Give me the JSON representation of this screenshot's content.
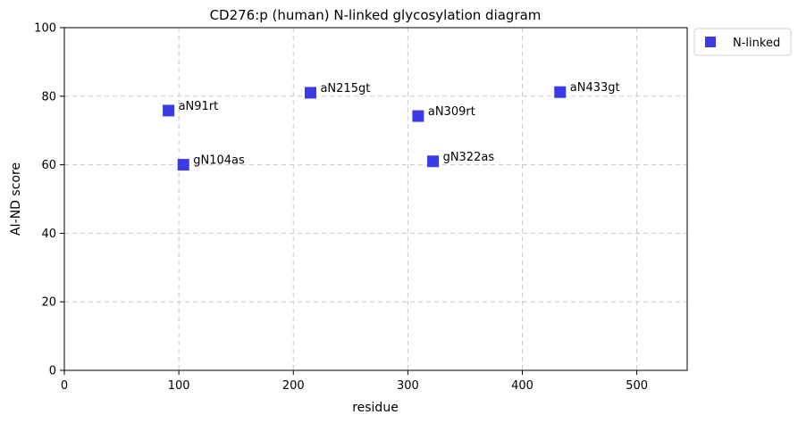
{
  "chart_data": {
    "type": "scatter",
    "title": "CD276:p (human) N-linked glycosylation diagram",
    "xlabel": "residue",
    "ylabel": "AI-ND score",
    "xlim": [
      0,
      544
    ],
    "ylim": [
      0,
      100
    ],
    "xticks": [
      0,
      100,
      200,
      300,
      400,
      500
    ],
    "yticks": [
      0,
      20,
      40,
      60,
      80,
      100
    ],
    "grid": true,
    "legend_position": "outside-top-right",
    "series": [
      {
        "name": "N-linked",
        "color": "#3a3ae6",
        "marker": "square",
        "points": [
          {
            "x": 91,
            "y": 75.8,
            "label": "aN91rt"
          },
          {
            "x": 104,
            "y": 60,
            "label": "gN104as"
          },
          {
            "x": 215,
            "y": 81,
            "label": "aN215gt"
          },
          {
            "x": 309,
            "y": 74.2,
            "label": "aN309rt"
          },
          {
            "x": 322,
            "y": 61,
            "label": "gN322as"
          },
          {
            "x": 433,
            "y": 81.2,
            "label": "aN433gt"
          }
        ]
      }
    ]
  }
}
